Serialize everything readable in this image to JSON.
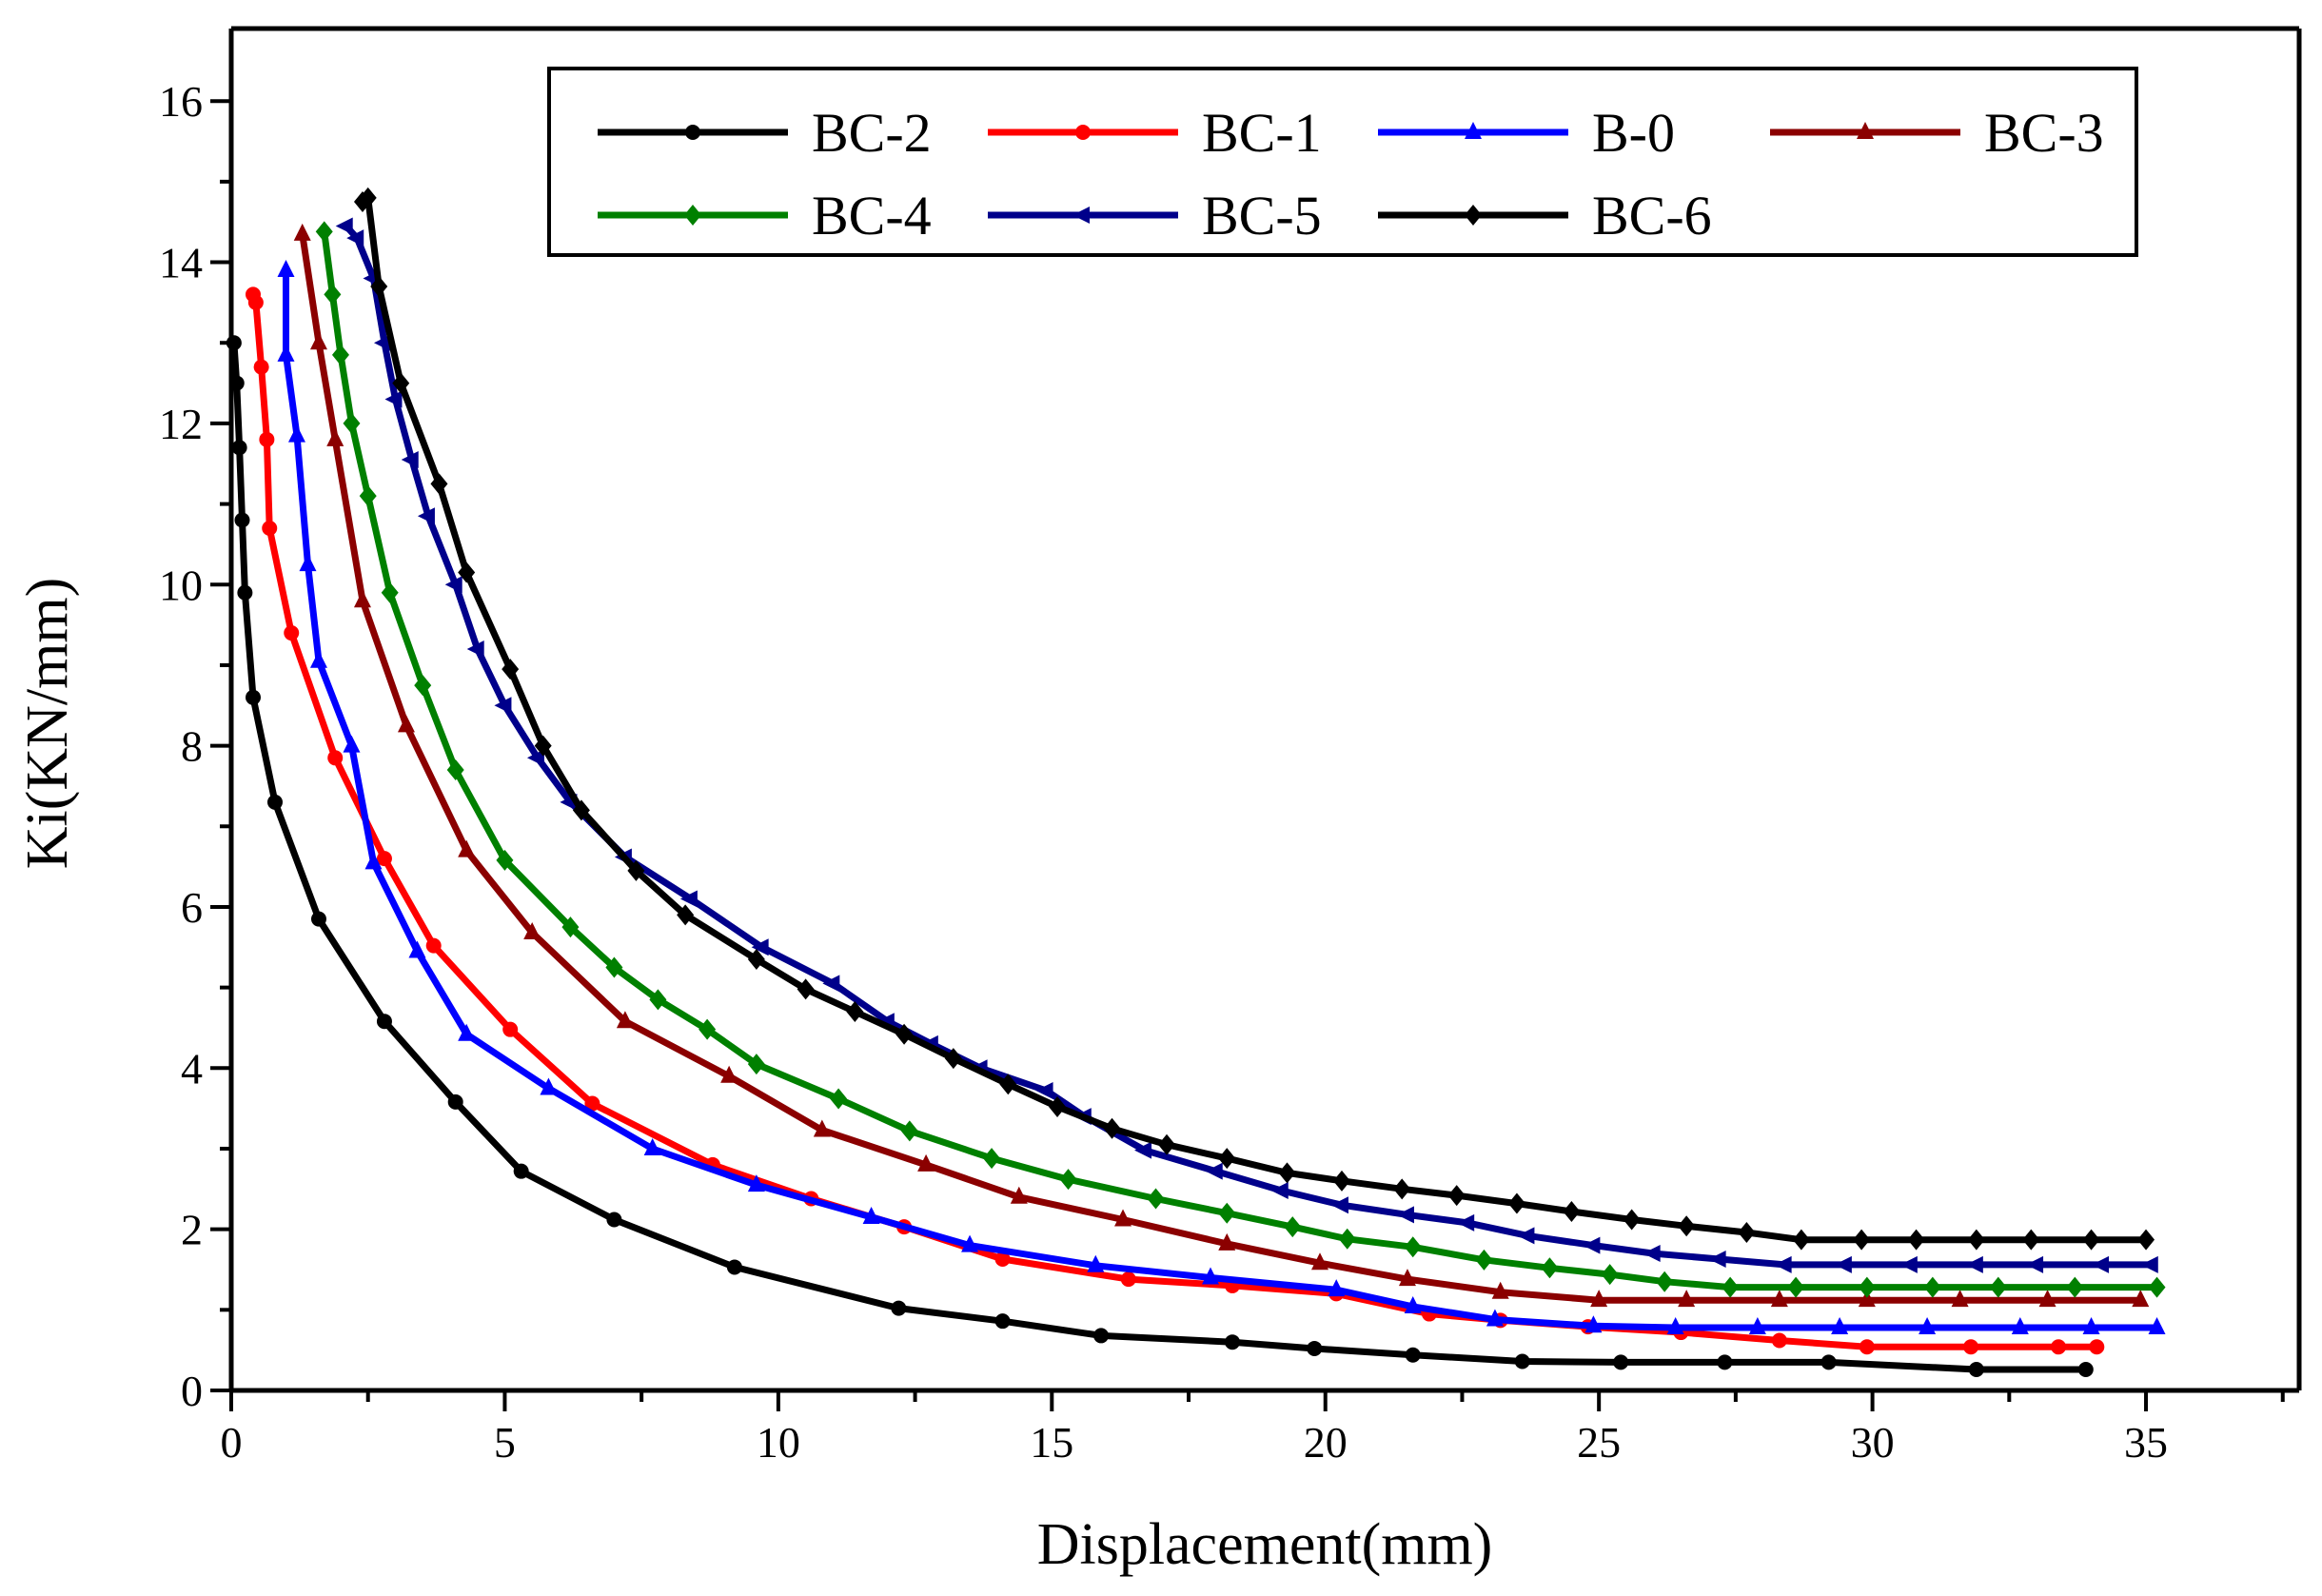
{
  "chart_data": {
    "type": "line",
    "title": "",
    "xlabel": "Displacement(mm)",
    "ylabel": "Ki(KN/mm)",
    "xlim": [
      0,
      37.8
    ],
    "ylim": [
      0,
      16.9
    ],
    "xticks": [
      "0",
      "5",
      "10",
      "15",
      "20",
      "25",
      "30",
      "35"
    ],
    "yticks": [
      "0",
      "2",
      "4",
      "6",
      "8",
      "10",
      "12",
      "14",
      "16"
    ],
    "grid": false,
    "legend_position": "top-right",
    "series": [
      {
        "name": "BC-2",
        "color": "#000000",
        "marker": "circle",
        "x": [
          0.05,
          0.1,
          0.15,
          0.2,
          0.25,
          0.4,
          0.8,
          1.6,
          2.8,
          4.1,
          5.3,
          7.0,
          9.2,
          12.2,
          14.1,
          15.9,
          18.3,
          19.8,
          21.6,
          23.6,
          25.4,
          27.3,
          29.2,
          31.9,
          33.9
        ],
        "y": [
          13.0,
          12.5,
          11.7,
          10.8,
          9.9,
          8.6,
          7.3,
          5.85,
          4.58,
          3.58,
          2.72,
          2.12,
          1.53,
          1.02,
          0.86,
          0.68,
          0.6,
          0.52,
          0.44,
          0.36,
          0.35,
          0.35,
          0.35,
          0.26,
          0.26
        ]
      },
      {
        "name": "BC-1",
        "color": "#ff0000",
        "marker": "circle",
        "x": [
          0.4,
          0.45,
          0.55,
          0.65,
          0.7,
          1.1,
          1.9,
          2.8,
          3.7,
          5.1,
          6.6,
          8.8,
          10.6,
          12.3,
          14.1,
          16.4,
          18.3,
          20.2,
          21.9,
          23.2,
          24.8,
          26.5,
          28.3,
          29.9,
          31.8,
          33.4,
          34.1
        ],
        "y": [
          13.6,
          13.5,
          12.7,
          11.8,
          10.7,
          9.4,
          7.85,
          6.6,
          5.52,
          4.48,
          3.56,
          2.8,
          2.38,
          2.03,
          1.63,
          1.38,
          1.3,
          1.2,
          0.95,
          0.87,
          0.79,
          0.72,
          0.62,
          0.54,
          0.54,
          0.54,
          0.54
        ]
      },
      {
        "name": "B-0",
        "color": "#0000ff",
        "marker": "triangle-up",
        "x": [
          1.0,
          1.0,
          1.2,
          1.4,
          1.6,
          2.2,
          2.6,
          3.4,
          4.3,
          5.8,
          7.7,
          9.6,
          11.7,
          13.5,
          15.8,
          17.9,
          20.2,
          21.6,
          23.1,
          24.9,
          26.4,
          27.9,
          29.4,
          31.0,
          32.7,
          34.0,
          35.2
        ],
        "y": [
          13.9,
          12.85,
          11.85,
          10.25,
          9.05,
          8.0,
          6.55,
          5.45,
          4.42,
          3.75,
          3.0,
          2.55,
          2.15,
          1.8,
          1.55,
          1.4,
          1.25,
          1.04,
          0.88,
          0.8,
          0.78,
          0.78,
          0.78,
          0.78,
          0.78,
          0.78,
          0.78
        ]
      },
      {
        "name": "BC-3",
        "color": "#8b0000",
        "marker": "triangle-up",
        "x": [
          1.3,
          1.6,
          1.9,
          2.4,
          3.2,
          4.3,
          5.5,
          7.2,
          9.1,
          10.8,
          12.7,
          14.4,
          16.3,
          18.2,
          19.9,
          21.5,
          23.2,
          25.0,
          26.6,
          28.3,
          29.9,
          31.6,
          33.2,
          34.9
        ],
        "y": [
          14.35,
          13.0,
          11.8,
          9.8,
          8.25,
          6.7,
          5.68,
          4.58,
          3.9,
          3.23,
          2.8,
          2.4,
          2.12,
          1.82,
          1.58,
          1.38,
          1.22,
          1.12,
          1.12,
          1.12,
          1.12,
          1.12,
          1.12,
          1.12
        ]
      },
      {
        "name": "BC-4",
        "color": "#008000",
        "marker": "diamond",
        "x": [
          1.7,
          1.85,
          2.0,
          2.2,
          2.5,
          2.9,
          3.5,
          4.1,
          5.0,
          6.2,
          7.0,
          7.8,
          8.7,
          9.6,
          11.1,
          12.4,
          13.9,
          15.3,
          16.9,
          18.2,
          19.4,
          20.4,
          21.6,
          22.9,
          24.1,
          25.2,
          26.2,
          27.4,
          28.6,
          29.9,
          31.1,
          32.3,
          33.7,
          35.2
        ],
        "y": [
          14.38,
          13.6,
          12.85,
          12.0,
          11.1,
          9.9,
          8.75,
          7.7,
          6.58,
          5.75,
          5.25,
          4.85,
          4.48,
          4.05,
          3.62,
          3.22,
          2.88,
          2.62,
          2.38,
          2.2,
          2.03,
          1.88,
          1.78,
          1.62,
          1.52,
          1.44,
          1.35,
          1.28,
          1.28,
          1.28,
          1.28,
          1.28,
          1.28,
          1.28
        ]
      },
      {
        "name": "BC-5",
        "color": "#00008b",
        "marker": "triangle-left",
        "x": [
          2.1,
          2.3,
          2.6,
          2.8,
          3.0,
          3.3,
          3.6,
          4.1,
          4.5,
          5.0,
          5.6,
          6.2,
          7.2,
          8.4,
          9.7,
          11.0,
          12.0,
          12.8,
          13.7,
          14.9,
          15.6,
          16.7,
          18.0,
          19.2,
          20.3,
          21.5,
          22.6,
          23.7,
          24.9,
          26.0,
          27.2,
          28.4,
          29.5,
          30.7,
          31.9,
          33.0,
          34.2,
          35.1
        ],
        "y": [
          14.45,
          14.3,
          13.8,
          13.0,
          12.3,
          11.55,
          10.85,
          10.0,
          9.2,
          8.5,
          7.85,
          7.3,
          6.62,
          6.1,
          5.5,
          5.05,
          4.58,
          4.3,
          4.0,
          3.72,
          3.4,
          2.98,
          2.72,
          2.48,
          2.3,
          2.18,
          2.08,
          1.92,
          1.8,
          1.7,
          1.63,
          1.56,
          1.56,
          1.56,
          1.56,
          1.56,
          1.56,
          1.56
        ]
      },
      {
        "name": "BC-6",
        "color": "#000000",
        "marker": "diamond",
        "x": [
          2.4,
          2.5,
          2.7,
          3.1,
          3.8,
          4.3,
          5.1,
          5.7,
          6.4,
          7.4,
          8.3,
          9.6,
          10.5,
          11.4,
          12.3,
          13.2,
          14.2,
          15.1,
          16.1,
          17.1,
          18.2,
          19.3,
          20.3,
          21.4,
          22.4,
          23.5,
          24.5,
          25.6,
          26.6,
          27.7,
          28.7,
          29.8,
          30.8,
          31.9,
          32.9,
          34.0,
          35.0
        ],
        "y": [
          14.75,
          14.8,
          13.7,
          12.5,
          11.25,
          10.15,
          8.95,
          8.0,
          7.2,
          6.45,
          5.9,
          5.35,
          4.98,
          4.7,
          4.42,
          4.12,
          3.8,
          3.52,
          3.25,
          3.05,
          2.88,
          2.7,
          2.6,
          2.5,
          2.42,
          2.32,
          2.22,
          2.12,
          2.04,
          1.96,
          1.87,
          1.87,
          1.87,
          1.87,
          1.87,
          1.87,
          1.87
        ]
      }
    ]
  }
}
